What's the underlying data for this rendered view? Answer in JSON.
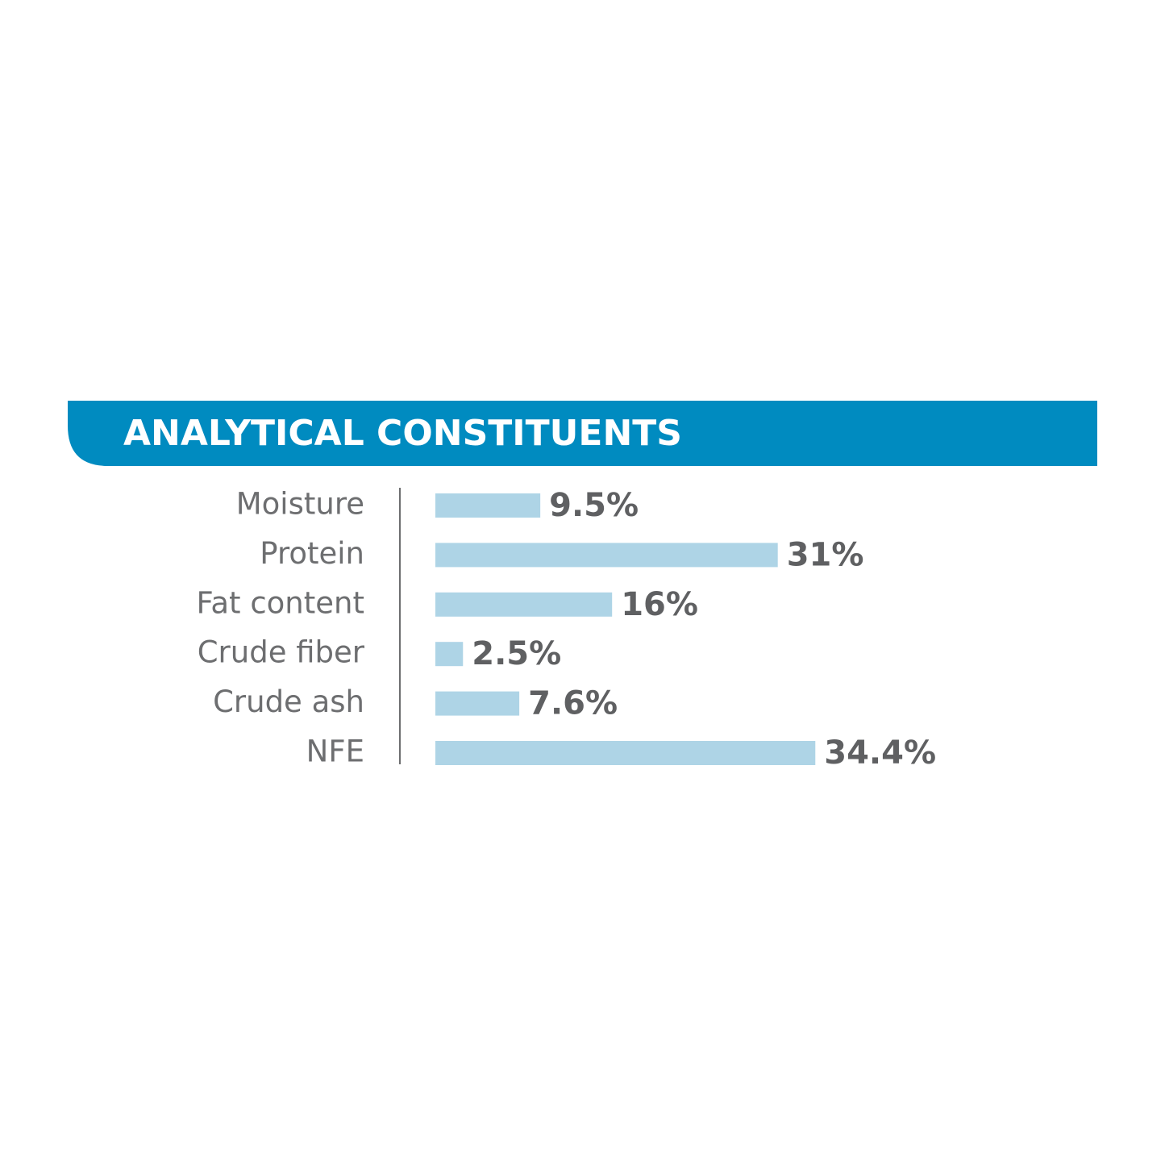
{
  "chart_data": {
    "type": "bar",
    "orientation": "horizontal",
    "title": "ANALYTICAL CONSTITUENTS",
    "categories": [
      "Moisture",
      "Protein",
      "Fat content",
      "Crude fiber",
      "Crude ash",
      "NFE"
    ],
    "values": [
      9.5,
      31,
      16,
      2.5,
      7.6,
      34.4
    ],
    "value_labels": [
      "9.5%",
      "31%",
      "16%",
      "2.5%",
      "7.6%",
      "34.4%"
    ],
    "color": "#aed4e6",
    "header_color": "#008bc0"
  }
}
